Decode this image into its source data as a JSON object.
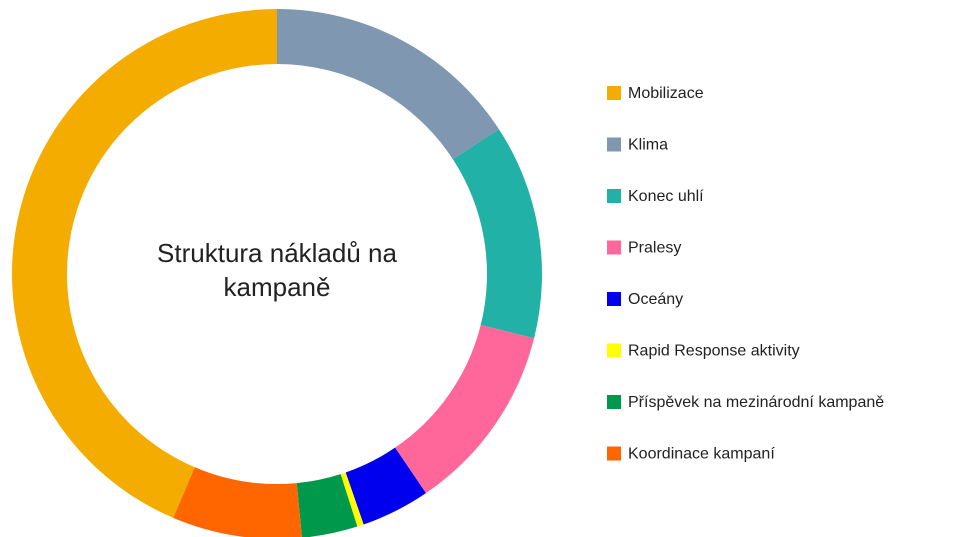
{
  "chart_data": {
    "type": "donut",
    "title": "Struktura nákladů na kampaně",
    "categories": [
      "Mobilizace",
      "Klima",
      "Konec uhlí",
      "Pralesy",
      "Oceány",
      "Rapid Response aktivity",
      "Příspěvek na mezinárodní kampaně",
      "Koordinace kampaní"
    ],
    "values": [
      43.6,
      15.8,
      13.1,
      11.6,
      4.2,
      0.4,
      3.4,
      7.9
    ],
    "colors": [
      "#f5ac00",
      "#7f97b0",
      "#22b1a6",
      "#ff6699",
      "#0000ee",
      "#ffff00",
      "#00984a",
      "#ff6600"
    ],
    "legend": "right"
  }
}
